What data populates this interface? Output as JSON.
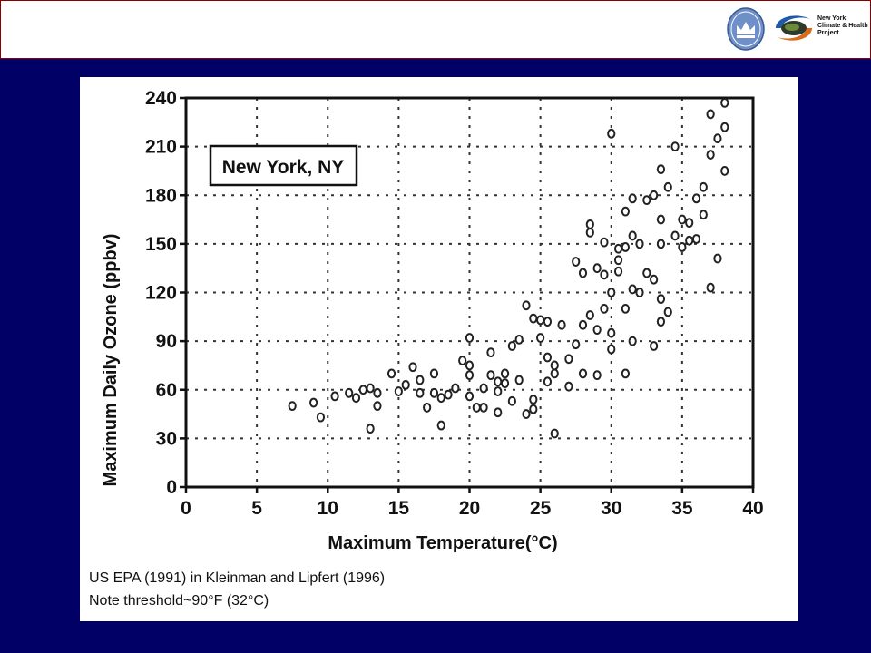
{
  "header": {
    "project_name_lines": [
      "New York",
      "Climate & Health",
      "Project"
    ]
  },
  "colors": {
    "background": "#000066",
    "header_border": "#8a0000",
    "crest_blue": "#6f8fc8",
    "logo_blue": "#1e5aa8",
    "logo_orange": "#d86a1a",
    "marker": "#222222"
  },
  "icons": {
    "crest": "columbia-crown-crest-icon",
    "project": "swirl-globe-logo-icon"
  },
  "caption": {
    "line1": "US EPA (1991)  in Kleinman and Lipfert (1996)",
    "line2": "Note threshold~90°F (32°C)"
  },
  "chart_data": {
    "type": "scatter",
    "title": "",
    "inset_label": "New York, NY",
    "xlabel": "Maximum Temperature(°C)",
    "ylabel": "Maximum Daily Ozone (ppbv)",
    "xlim": [
      0,
      40
    ],
    "ylim": [
      0,
      240
    ],
    "xticks": [
      "0",
      "5",
      "10",
      "15",
      "20",
      "25",
      "30",
      "35",
      "40"
    ],
    "yticks": [
      "0",
      "30",
      "60",
      "90",
      "120",
      "150",
      "180",
      "210",
      "240"
    ],
    "grid": true,
    "legend": "none",
    "marker": "open-circle",
    "series": [
      {
        "points": [
          [
            7.5,
            50
          ],
          [
            9,
            52
          ],
          [
            9.5,
            43
          ],
          [
            10.5,
            56
          ],
          [
            11.5,
            58
          ],
          [
            12,
            55
          ],
          [
            12.5,
            60
          ],
          [
            13,
            61
          ],
          [
            13,
            36
          ],
          [
            13.5,
            50
          ],
          [
            13.5,
            58
          ],
          [
            14.5,
            70
          ],
          [
            15,
            59
          ],
          [
            15.5,
            63
          ],
          [
            16,
            74
          ],
          [
            16.5,
            66
          ],
          [
            16.5,
            58
          ],
          [
            17,
            49
          ],
          [
            17.5,
            70
          ],
          [
            17.5,
            58
          ],
          [
            18,
            55
          ],
          [
            18,
            38
          ],
          [
            18.5,
            57
          ],
          [
            19,
            61
          ],
          [
            19.5,
            78
          ],
          [
            20,
            92
          ],
          [
            20,
            75
          ],
          [
            20,
            69
          ],
          [
            20,
            56
          ],
          [
            20.5,
            49
          ],
          [
            21,
            61
          ],
          [
            21,
            49
          ],
          [
            21.5,
            83
          ],
          [
            21.5,
            69
          ],
          [
            22,
            65
          ],
          [
            22,
            59
          ],
          [
            22,
            46
          ],
          [
            22.5,
            70
          ],
          [
            22.5,
            64
          ],
          [
            23,
            87
          ],
          [
            23,
            53
          ],
          [
            23.5,
            91
          ],
          [
            23.5,
            66
          ],
          [
            24,
            112
          ],
          [
            24,
            45
          ],
          [
            24.5,
            104
          ],
          [
            24.5,
            54
          ],
          [
            24.5,
            48
          ],
          [
            25,
            103
          ],
          [
            25,
            92
          ],
          [
            25.5,
            102
          ],
          [
            25.5,
            80
          ],
          [
            25.5,
            65
          ],
          [
            26,
            75
          ],
          [
            26,
            70
          ],
          [
            26,
            33
          ],
          [
            26.5,
            100
          ],
          [
            27,
            62
          ],
          [
            27,
            79
          ],
          [
            27.5,
            139
          ],
          [
            27.5,
            88
          ],
          [
            28,
            132
          ],
          [
            28,
            100
          ],
          [
            28,
            70
          ],
          [
            28.5,
            162
          ],
          [
            28.5,
            157
          ],
          [
            28.5,
            106
          ],
          [
            29,
            135
          ],
          [
            29,
            97
          ],
          [
            29,
            69
          ],
          [
            29.5,
            151
          ],
          [
            29.5,
            131
          ],
          [
            29.5,
            110
          ],
          [
            30,
            218
          ],
          [
            30,
            120
          ],
          [
            30,
            95
          ],
          [
            30,
            85
          ],
          [
            30.5,
            147
          ],
          [
            30.5,
            140
          ],
          [
            30.5,
            133
          ],
          [
            31,
            170
          ],
          [
            31,
            148
          ],
          [
            31,
            110
          ],
          [
            31,
            70
          ],
          [
            31.5,
            178
          ],
          [
            31.5,
            155
          ],
          [
            31.5,
            122
          ],
          [
            31.5,
            90
          ],
          [
            32,
            150
          ],
          [
            32,
            120
          ],
          [
            32.5,
            132
          ],
          [
            32.5,
            177
          ],
          [
            33,
            180
          ],
          [
            33,
            128
          ],
          [
            33,
            87
          ],
          [
            33.5,
            196
          ],
          [
            33.5,
            165
          ],
          [
            33.5,
            150
          ],
          [
            33.5,
            116
          ],
          [
            33.5,
            102
          ],
          [
            34,
            185
          ],
          [
            34,
            108
          ],
          [
            34.5,
            210
          ],
          [
            34.5,
            155
          ],
          [
            35,
            165
          ],
          [
            35,
            148
          ],
          [
            35.5,
            163
          ],
          [
            35.5,
            152
          ],
          [
            36,
            178
          ],
          [
            36,
            153
          ],
          [
            36.5,
            185
          ],
          [
            36.5,
            168
          ],
          [
            37,
            230
          ],
          [
            37,
            205
          ],
          [
            37,
            123
          ],
          [
            37.5,
            215
          ],
          [
            37.5,
            141
          ],
          [
            38,
            237
          ],
          [
            38,
            222
          ],
          [
            38,
            195
          ]
        ]
      }
    ]
  }
}
